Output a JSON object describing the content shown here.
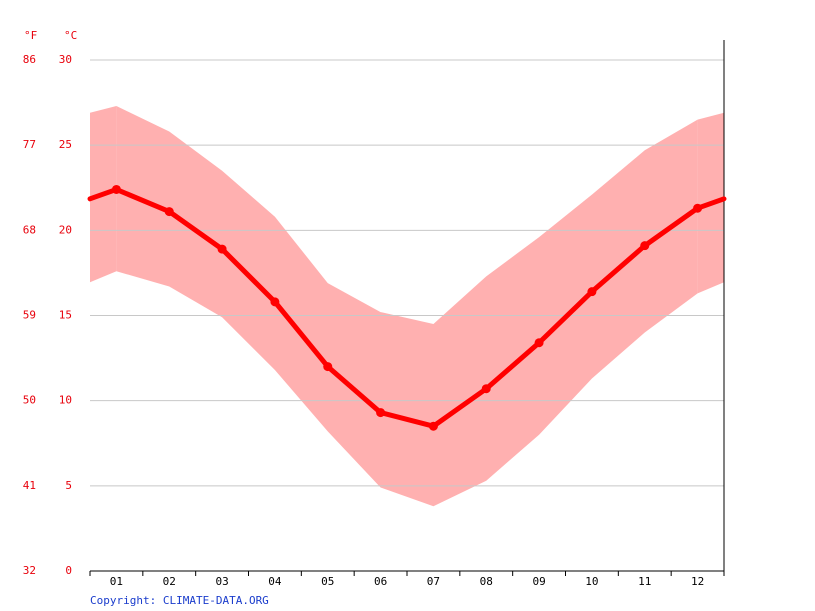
{
  "chart_data": {
    "type": "line",
    "axis_label_left": "°F",
    "axis_label_right": "°C",
    "categories": [
      "01",
      "02",
      "03",
      "04",
      "05",
      "06",
      "07",
      "08",
      "09",
      "10",
      "11",
      "12"
    ],
    "series": [
      {
        "color": "#ff0000",
        "values": [
          22.4,
          21.1,
          18.9,
          15.8,
          12.0,
          9.3,
          8.5,
          10.7,
          13.4,
          16.4,
          19.1,
          21.3
        ]
      }
    ],
    "band": {
      "color": "#ffb0b0",
      "upper": [
        27.3,
        25.8,
        23.5,
        20.8,
        16.9,
        15.2,
        14.5,
        17.3,
        19.6,
        22.1,
        24.7,
        26.5
      ],
      "lower": [
        17.6,
        16.7,
        14.9,
        11.8,
        8.2,
        4.9,
        3.8,
        5.3,
        8.0,
        11.3,
        14.0,
        16.3
      ]
    },
    "ylim": [
      0,
      30
    ],
    "yticks": [
      0,
      5,
      10,
      15,
      20,
      25,
      30
    ],
    "y2lim": [
      32,
      86
    ],
    "y2ticks": [
      32,
      41,
      50,
      59,
      68,
      77,
      86
    ],
    "grid": true,
    "copyright": "Copyright: CLIMATE-DATA.ORG"
  }
}
